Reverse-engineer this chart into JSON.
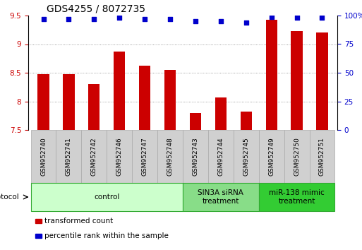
{
  "title": "GDS4255 / 8072735",
  "samples": [
    "GSM952740",
    "GSM952741",
    "GSM952742",
    "GSM952746",
    "GSM952747",
    "GSM952748",
    "GSM952743",
    "GSM952744",
    "GSM952745",
    "GSM952749",
    "GSM952750",
    "GSM952751"
  ],
  "bar_values": [
    8.47,
    8.47,
    8.3,
    8.87,
    8.62,
    8.55,
    7.8,
    8.07,
    7.82,
    9.42,
    9.23,
    9.2
  ],
  "dot_values": [
    97,
    97,
    97,
    98,
    97,
    97,
    95,
    95,
    94,
    99,
    98,
    98
  ],
  "bar_color": "#cc0000",
  "dot_color": "#0000cc",
  "ylim_left": [
    7.5,
    9.5
  ],
  "ylim_right": [
    0,
    100
  ],
  "yticks_left": [
    7.5,
    8.0,
    8.5,
    9.0,
    9.5
  ],
  "ytick_labels_left": [
    "7.5",
    "8",
    "8.5",
    "9",
    "9.5"
  ],
  "yticks_right": [
    0,
    25,
    50,
    75,
    100
  ],
  "ytick_labels_right": [
    "0",
    "25",
    "50",
    "75",
    "100%"
  ],
  "groups": [
    {
      "label": "control",
      "start": 0,
      "end": 6,
      "color": "#ccffcc",
      "edge_color": "#33aa33"
    },
    {
      "label": "SIN3A siRNA\ntreatment",
      "start": 6,
      "end": 9,
      "color": "#88dd88",
      "edge_color": "#33aa33"
    },
    {
      "label": "miR-138 mimic\ntreatment",
      "start": 9,
      "end": 12,
      "color": "#33cc33",
      "edge_color": "#33aa33"
    }
  ],
  "protocol_label": "protocol",
  "legend_items": [
    {
      "label": "transformed count",
      "color": "#cc0000"
    },
    {
      "label": "percentile rank within the sample",
      "color": "#0000cc"
    }
  ],
  "grid_color": "#888888",
  "tick_label_color_left": "#cc0000",
  "tick_label_color_right": "#0000cc",
  "bar_width": 0.45,
  "title_fontsize": 10,
  "tick_fontsize": 7.5,
  "sample_fontsize": 6.5,
  "group_fontsize": 7.5,
  "legend_fontsize": 7.5
}
